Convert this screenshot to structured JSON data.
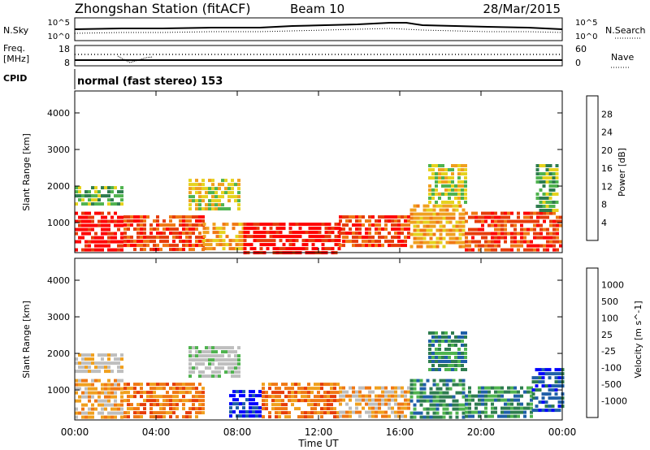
{
  "header": {
    "station": "Zhongshan Station (fitACF)",
    "beam": "Beam 10",
    "date": "28/Mar/2015"
  },
  "noise_panel": {
    "left_label": "N.Sky",
    "right_label": "N.Search",
    "left_ticks": [
      "10^5",
      "10^0"
    ],
    "right_ticks": [
      "10^5",
      "10^0"
    ]
  },
  "freq_panel": {
    "left_label_line1": "Freq.",
    "left_label_line2": "[MHz]",
    "right_label": "Nave",
    "left_ticks": [
      "18",
      "8"
    ],
    "right_ticks": [
      "60",
      "0"
    ]
  },
  "cpid": {
    "label": "CPID",
    "value": "normal (fast stereo) 153"
  },
  "colors": {
    "power_scale": [
      "#0000ff",
      "#1f5fa8",
      "#2e7d4f",
      "#4fb34f",
      "#e6d21e",
      "#f0a01e",
      "#f07814",
      "#e63c0a",
      "#ff0000"
    ],
    "velocity_scale": [
      "#ff0000",
      "#e63c0a",
      "#f07814",
      "#f0a01e",
      "#bebebe",
      "#bebebe",
      "#4fb34f",
      "#2e7d4f",
      "#1f5fa8",
      "#0000ff"
    ]
  },
  "chart_data": [
    {
      "type": "heatmap",
      "name": "power",
      "ylabel": "Slant Range [km]",
      "colorbar_label": "Power [dB]",
      "colorbar_ticks": [
        "4",
        "8",
        "12",
        "16",
        "20",
        "24",
        "28"
      ],
      "ylim": [
        180,
        4600
      ],
      "y_ticks": [
        "1000",
        "2000",
        "3000",
        "4000"
      ],
      "x_ticks": [
        "00:00",
        "04:00",
        "08:00",
        "12:00",
        "16:00",
        "20:00",
        "00:00"
      ],
      "xlim_hours": [
        0,
        24
      ],
      "bands": [
        {
          "t0": 0.0,
          "t1": 2.4,
          "r0": 300,
          "r1": 1300,
          "level": 8
        },
        {
          "t0": 0.0,
          "t1": 2.4,
          "r0": 1500,
          "r1": 2000,
          "level": 3
        },
        {
          "t0": 2.4,
          "t1": 6.3,
          "r0": 300,
          "r1": 1200,
          "level": 7
        },
        {
          "t0": 5.6,
          "t1": 8.1,
          "r0": 1400,
          "r1": 2200,
          "level": 4
        },
        {
          "t0": 6.3,
          "t1": 8.3,
          "r0": 300,
          "r1": 1000,
          "level": 5
        },
        {
          "t0": 8.3,
          "t1": 13.0,
          "r0": 200,
          "r1": 1000,
          "level": 8
        },
        {
          "t0": 13.0,
          "t1": 16.5,
          "r0": 400,
          "r1": 1200,
          "level": 7
        },
        {
          "t0": 16.5,
          "t1": 19.2,
          "r0": 300,
          "r1": 1500,
          "level": 5
        },
        {
          "t0": 17.4,
          "t1": 19.2,
          "r0": 1500,
          "r1": 2600,
          "level": 4
        },
        {
          "t0": 19.2,
          "t1": 24.0,
          "r0": 300,
          "r1": 1300,
          "level": 7
        },
        {
          "t0": 22.7,
          "t1": 23.8,
          "r0": 1300,
          "r1": 2600,
          "level": 3
        }
      ]
    },
    {
      "type": "heatmap",
      "name": "velocity",
      "ylabel": "Slant Range [km]",
      "colorbar_label": "Velocity [m s^-1]",
      "colorbar_ticks": [
        "-1000",
        "-500",
        "-100",
        "-25",
        "25",
        "100",
        "500",
        "1000"
      ],
      "ylim": [
        180,
        4600
      ],
      "y_ticks": [
        "1000",
        "2000",
        "3000",
        "4000"
      ],
      "x_ticks": [
        "00:00",
        "04:00",
        "08:00",
        "12:00",
        "16:00",
        "20:00",
        "00:00"
      ],
      "xlim_hours": [
        0,
        24
      ],
      "xlabel": "Time UT",
      "bands": [
        {
          "t0": 0.0,
          "t1": 2.4,
          "r0": 300,
          "r1": 1300,
          "level": 3
        },
        {
          "t0": 0.0,
          "t1": 2.4,
          "r0": 1500,
          "r1": 2000,
          "level": 4
        },
        {
          "t0": 2.4,
          "t1": 6.3,
          "r0": 300,
          "r1": 1200,
          "level": 2
        },
        {
          "t0": 5.6,
          "t1": 8.1,
          "r0": 1400,
          "r1": 2200,
          "level": 5
        },
        {
          "t0": 7.6,
          "t1": 9.2,
          "r0": 300,
          "r1": 1000,
          "level": 9
        },
        {
          "t0": 9.2,
          "t1": 13.0,
          "r0": 300,
          "r1": 1200,
          "level": 2
        },
        {
          "t0": 13.0,
          "t1": 16.5,
          "r0": 300,
          "r1": 1100,
          "level": 3
        },
        {
          "t0": 16.5,
          "t1": 19.2,
          "r0": 300,
          "r1": 1300,
          "level": 7
        },
        {
          "t0": 17.4,
          "t1": 19.2,
          "r0": 1500,
          "r1": 2600,
          "level": 7
        },
        {
          "t0": 19.2,
          "t1": 22.5,
          "r0": 300,
          "r1": 1100,
          "level": 7
        },
        {
          "t0": 22.5,
          "t1": 24.0,
          "r0": 400,
          "r1": 1600,
          "level": 8
        }
      ]
    }
  ]
}
